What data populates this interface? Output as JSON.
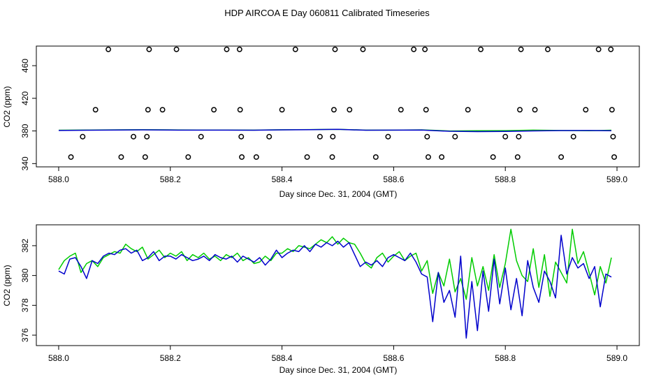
{
  "page_title": "HDP AIRCOA E  Day 060811  Calibrated Timeseries",
  "chart_data": [
    {
      "type": "scatter",
      "title": "HDP AIRCOA E  Day 060811  Calibrated Timeseries",
      "xlabel": "Day since Dec. 31, 2004 (GMT)",
      "ylabel": "CO2 (ppm)",
      "xlim": [
        587.96,
        589.04
      ],
      "ylim": [
        336,
        484
      ],
      "x_ticks": [
        588.0,
        588.2,
        588.4,
        588.6,
        588.8,
        589.0
      ],
      "x_tick_labels": [
        "588.0",
        "588.2",
        "588.4",
        "588.6",
        "588.8",
        "589.0"
      ],
      "y_ticks": [
        340,
        380,
        420,
        460
      ],
      "y_tick_labels": [
        "340",
        "380",
        "420",
        "460"
      ],
      "grid": false,
      "series": [
        {
          "style": "open circles",
          "color": "#000000",
          "points": [
            [
              588.022,
              348
            ],
            [
              588.043,
              373
            ],
            [
              588.066,
              406
            ],
            [
              588.089,
              480
            ],
            [
              588.112,
              348
            ],
            [
              588.134,
              373
            ],
            [
              588.155,
              348
            ],
            [
              588.158,
              373
            ],
            [
              588.16,
              406
            ],
            [
              588.162,
              480
            ],
            [
              588.186,
              406
            ],
            [
              588.211,
              480
            ],
            [
              588.232,
              348
            ],
            [
              588.255,
              373
            ],
            [
              588.278,
              406
            ],
            [
              588.301,
              480
            ],
            [
              588.324,
              480
            ],
            [
              588.325,
              406
            ],
            [
              588.327,
              373
            ],
            [
              588.328,
              348
            ],
            [
              588.354,
              348
            ],
            [
              588.377,
              373
            ],
            [
              588.4,
              406
            ],
            [
              588.424,
              480
            ],
            [
              588.445,
              348
            ],
            [
              588.468,
              373
            ],
            [
              588.49,
              348
            ],
            [
              588.491,
              373
            ],
            [
              588.493,
              406
            ],
            [
              588.495,
              480
            ],
            [
              588.521,
              406
            ],
            [
              588.545,
              480
            ],
            [
              588.568,
              348
            ],
            [
              588.59,
              373
            ],
            [
              588.613,
              406
            ],
            [
              588.636,
              480
            ],
            [
              588.656,
              480
            ],
            [
              588.658,
              406
            ],
            [
              588.66,
              373
            ],
            [
              588.662,
              348
            ],
            [
              588.686,
              348
            ],
            [
              588.71,
              373
            ],
            [
              588.733,
              406
            ],
            [
              588.756,
              480
            ],
            [
              588.778,
              348
            ],
            [
              588.8,
              373
            ],
            [
              588.822,
              348
            ],
            [
              588.824,
              373
            ],
            [
              588.826,
              406
            ],
            [
              588.828,
              480
            ],
            [
              588.853,
              406
            ],
            [
              588.876,
              480
            ],
            [
              588.9,
              348
            ],
            [
              588.922,
              373
            ],
            [
              588.944,
              406
            ],
            [
              588.967,
              480
            ],
            [
              588.989,
              480
            ],
            [
              588.991,
              406
            ],
            [
              588.993,
              373
            ],
            [
              588.995,
              348
            ]
          ]
        },
        {
          "style": "line",
          "color": "#00cc00",
          "points": [
            [
              588.0,
              380.9
            ],
            [
              588.05,
              381.1
            ],
            [
              588.1,
              381.3
            ],
            [
              588.15,
              381.5
            ],
            [
              588.2,
              381.3
            ],
            [
              588.25,
              381.1
            ],
            [
              588.3,
              381.2
            ],
            [
              588.35,
              381.0
            ],
            [
              588.4,
              381.4
            ],
            [
              588.45,
              381.7
            ],
            [
              588.5,
              382.0
            ],
            [
              588.55,
              381.0
            ],
            [
              588.6,
              381.0
            ],
            [
              588.65,
              381.3
            ],
            [
              588.7,
              380.0
            ],
            [
              588.75,
              380.2
            ],
            [
              588.8,
              380.4
            ],
            [
              588.85,
              381.0
            ],
            [
              588.9,
              380.6
            ],
            [
              588.95,
              380.2
            ],
            [
              588.99,
              380.9
            ]
          ]
        },
        {
          "style": "line",
          "color": "#0000cc",
          "points": [
            [
              588.0,
              380.6
            ],
            [
              588.05,
              380.9
            ],
            [
              588.1,
              381.2
            ],
            [
              588.15,
              381.3
            ],
            [
              588.2,
              381.1
            ],
            [
              588.25,
              381.0
            ],
            [
              588.3,
              381.0
            ],
            [
              588.35,
              380.9
            ],
            [
              588.4,
              381.3
            ],
            [
              588.45,
              381.6
            ],
            [
              588.5,
              381.9
            ],
            [
              588.55,
              380.9
            ],
            [
              588.6,
              381.0
            ],
            [
              588.65,
              381.1
            ],
            [
              588.7,
              379.6
            ],
            [
              588.75,
              379.2
            ],
            [
              588.8,
              379.4
            ],
            [
              588.85,
              380.1
            ],
            [
              588.9,
              380.5
            ],
            [
              588.95,
              380.6
            ],
            [
              588.99,
              380.2
            ]
          ]
        }
      ]
    },
    {
      "type": "line",
      "xlabel": "Day since Dec. 31, 2004 (GMT)",
      "ylabel": "CO2 (ppm)",
      "xlim": [
        587.96,
        589.04
      ],
      "ylim": [
        375.3,
        383.4
      ],
      "x_ticks": [
        588.0,
        588.2,
        588.4,
        588.6,
        588.8,
        589.0
      ],
      "x_tick_labels": [
        "588.0",
        "588.2",
        "588.4",
        "588.6",
        "588.8",
        "589.0"
      ],
      "y_ticks": [
        376,
        378,
        380,
        382
      ],
      "y_tick_labels": [
        "376",
        "378",
        "380",
        "382"
      ],
      "grid": false,
      "series": [
        {
          "color": "#00cc00",
          "x": [
            588.0,
            588.01,
            588.02,
            588.03,
            588.04,
            588.05,
            588.06,
            588.07,
            588.08,
            588.09,
            588.1,
            588.11,
            588.12,
            588.13,
            588.14,
            588.15,
            588.16,
            588.17,
            588.18,
            588.19,
            588.2,
            588.21,
            588.22,
            588.23,
            588.24,
            588.25,
            588.26,
            588.27,
            588.28,
            588.29,
            588.3,
            588.31,
            588.32,
            588.33,
            588.34,
            588.35,
            588.36,
            588.37,
            588.38,
            588.39,
            588.4,
            588.41,
            588.42,
            588.43,
            588.44,
            588.45,
            588.46,
            588.47,
            588.48,
            588.49,
            588.5,
            588.51,
            588.52,
            588.53,
            588.54,
            588.55,
            588.56,
            588.57,
            588.58,
            588.59,
            588.6,
            588.61,
            588.62,
            588.63,
            588.64,
            588.65,
            588.66,
            588.67,
            588.68,
            588.69,
            588.7,
            588.71,
            588.72,
            588.73,
            588.74,
            588.75,
            588.76,
            588.77,
            588.78,
            588.79,
            588.8,
            588.81,
            588.82,
            588.83,
            588.84,
            588.85,
            588.86,
            588.87,
            588.88,
            588.89,
            588.9,
            588.91,
            588.92,
            588.93,
            588.94,
            588.95,
            588.96,
            588.97,
            588.98,
            588.99
          ],
          "values": [
            380.4,
            381.0,
            381.3,
            381.5,
            380.2,
            380.8,
            381.0,
            380.6,
            381.2,
            381.4,
            381.6,
            381.5,
            382.1,
            381.8,
            381.6,
            381.9,
            381.1,
            381.4,
            381.7,
            381.2,
            381.5,
            381.3,
            381.6,
            381.0,
            381.4,
            381.2,
            381.5,
            381.1,
            381.3,
            381.0,
            381.4,
            381.2,
            381.5,
            381.0,
            381.2,
            380.8,
            380.9,
            381.3,
            381.0,
            381.5,
            381.5,
            381.8,
            381.6,
            382.0,
            381.9,
            381.8,
            382.1,
            382.4,
            382.2,
            382.6,
            382.1,
            382.5,
            382.2,
            382.1,
            381.5,
            380.8,
            380.5,
            381.2,
            381.5,
            380.9,
            381.3,
            381.6,
            381.0,
            381.3,
            381.5,
            380.3,
            381.0,
            378.8,
            380.2,
            379.3,
            381.1,
            378.9,
            379.8,
            378.4,
            381.2,
            379.3,
            380.6,
            379.0,
            381.4,
            379.2,
            380.8,
            383.1,
            381.0,
            380.0,
            379.6,
            381.8,
            379.2,
            381.4,
            378.6,
            380.9,
            380.2,
            379.5,
            383.1,
            380.8,
            381.6,
            380.2,
            378.7,
            380.6,
            379.5,
            381.2
          ]
        },
        {
          "color": "#0000cc",
          "x": [
            588.0,
            588.01,
            588.02,
            588.03,
            588.04,
            588.05,
            588.06,
            588.07,
            588.08,
            588.09,
            588.1,
            588.11,
            588.12,
            588.13,
            588.14,
            588.15,
            588.16,
            588.17,
            588.18,
            588.19,
            588.2,
            588.21,
            588.22,
            588.23,
            588.24,
            588.25,
            588.26,
            588.27,
            588.28,
            588.29,
            588.3,
            588.31,
            588.32,
            588.33,
            588.34,
            588.35,
            588.36,
            588.37,
            588.38,
            588.39,
            588.4,
            588.41,
            588.42,
            588.43,
            588.44,
            588.45,
            588.46,
            588.47,
            588.48,
            588.49,
            588.5,
            588.51,
            588.52,
            588.53,
            588.54,
            588.55,
            588.56,
            588.57,
            588.58,
            588.59,
            588.6,
            588.61,
            588.62,
            588.63,
            588.64,
            588.65,
            588.66,
            588.67,
            588.68,
            588.69,
            588.7,
            588.71,
            588.72,
            588.73,
            588.74,
            588.75,
            588.76,
            588.77,
            588.78,
            588.79,
            588.8,
            588.81,
            588.82,
            588.83,
            588.84,
            588.85,
            588.86,
            588.87,
            588.88,
            588.89,
            588.9,
            588.91,
            588.92,
            588.93,
            588.94,
            588.95,
            588.96,
            588.97,
            588.98,
            588.99
          ],
          "values": [
            380.3,
            380.1,
            381.1,
            381.2,
            380.6,
            379.8,
            381.0,
            380.8,
            381.3,
            381.5,
            381.4,
            381.7,
            381.8,
            381.5,
            381.7,
            381.0,
            381.2,
            381.6,
            381.0,
            381.3,
            381.3,
            381.1,
            381.4,
            381.2,
            381.0,
            381.1,
            381.3,
            381.0,
            381.4,
            381.2,
            381.1,
            381.3,
            380.9,
            381.3,
            381.1,
            380.9,
            381.2,
            380.7,
            381.1,
            381.7,
            381.2,
            381.5,
            381.7,
            381.6,
            382.0,
            381.6,
            382.1,
            381.9,
            382.2,
            382.0,
            382.3,
            381.9,
            382.2,
            381.4,
            380.6,
            380.9,
            380.7,
            381.0,
            380.6,
            381.2,
            381.4,
            381.2,
            381.0,
            381.5,
            380.9,
            380.1,
            379.9,
            376.9,
            380.2,
            378.2,
            379.0,
            377.2,
            381.3,
            375.8,
            379.6,
            376.3,
            380.3,
            377.6,
            381.1,
            378.1,
            380.5,
            377.7,
            379.8,
            377.3,
            381.0,
            379.2,
            378.2,
            380.3,
            379.6,
            378.5,
            382.7,
            380.1,
            381.2,
            380.5,
            380.8,
            379.8,
            380.6,
            377.9,
            380.1,
            379.9
          ]
        }
      ]
    }
  ]
}
